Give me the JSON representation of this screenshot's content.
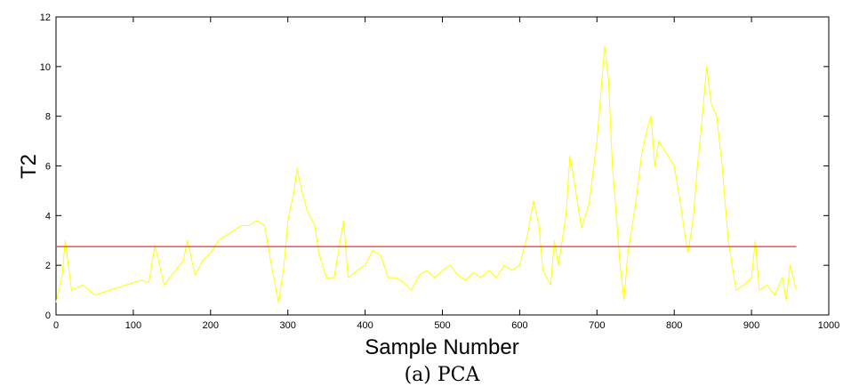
{
  "chart_data": {
    "type": "line",
    "caption": "(a) PCA",
    "xlabel": "Sample Number",
    "ylabel": "T2",
    "xlim": [
      0,
      1000
    ],
    "ylim": [
      0,
      12
    ],
    "xticks": [
      0,
      100,
      200,
      300,
      400,
      500,
      600,
      700,
      800,
      900,
      1000
    ],
    "yticks": [
      0,
      2,
      4,
      6,
      8,
      10,
      12
    ],
    "grid": false,
    "series": [
      {
        "color": "#ffff00",
        "points": [
          [
            0,
            0.5
          ],
          [
            8,
            1.6
          ],
          [
            12,
            3.0
          ],
          [
            20,
            1.0
          ],
          [
            35,
            1.2
          ],
          [
            50,
            0.8
          ],
          [
            70,
            1.0
          ],
          [
            90,
            1.2
          ],
          [
            110,
            1.4
          ],
          [
            120,
            1.3
          ],
          [
            128,
            2.8
          ],
          [
            140,
            1.2
          ],
          [
            150,
            1.6
          ],
          [
            165,
            2.2
          ],
          [
            170,
            3.0
          ],
          [
            180,
            1.6
          ],
          [
            190,
            2.2
          ],
          [
            200,
            2.5
          ],
          [
            210,
            3.0
          ],
          [
            220,
            3.2
          ],
          [
            230,
            3.4
          ],
          [
            240,
            3.6
          ],
          [
            250,
            3.6
          ],
          [
            260,
            3.8
          ],
          [
            270,
            3.6
          ],
          [
            280,
            1.8
          ],
          [
            288,
            0.5
          ],
          [
            295,
            2.0
          ],
          [
            300,
            3.8
          ],
          [
            308,
            5.0
          ],
          [
            312,
            5.9
          ],
          [
            318,
            5.0
          ],
          [
            325,
            4.2
          ],
          [
            335,
            3.6
          ],
          [
            340,
            2.5
          ],
          [
            350,
            1.5
          ],
          [
            360,
            1.5
          ],
          [
            372,
            3.8
          ],
          [
            378,
            1.5
          ],
          [
            390,
            1.8
          ],
          [
            400,
            2.0
          ],
          [
            410,
            2.6
          ],
          [
            420,
            2.4
          ],
          [
            430,
            1.5
          ],
          [
            440,
            1.5
          ],
          [
            450,
            1.3
          ],
          [
            460,
            1.0
          ],
          [
            470,
            1.6
          ],
          [
            480,
            1.8
          ],
          [
            490,
            1.5
          ],
          [
            500,
            1.8
          ],
          [
            510,
            2.0
          ],
          [
            520,
            1.6
          ],
          [
            530,
            1.4
          ],
          [
            540,
            1.7
          ],
          [
            550,
            1.5
          ],
          [
            560,
            1.8
          ],
          [
            570,
            1.5
          ],
          [
            580,
            2.0
          ],
          [
            590,
            1.8
          ],
          [
            600,
            2.0
          ],
          [
            610,
            3.2
          ],
          [
            618,
            4.6
          ],
          [
            625,
            3.6
          ],
          [
            630,
            1.8
          ],
          [
            640,
            1.2
          ],
          [
            645,
            3.0
          ],
          [
            650,
            2.0
          ],
          [
            660,
            4.0
          ],
          [
            665,
            6.4
          ],
          [
            670,
            5.5
          ],
          [
            680,
            3.5
          ],
          [
            690,
            4.5
          ],
          [
            700,
            7.0
          ],
          [
            710,
            10.8
          ],
          [
            715,
            9.5
          ],
          [
            720,
            6.0
          ],
          [
            730,
            2.0
          ],
          [
            735,
            0.6
          ],
          [
            740,
            2.5
          ],
          [
            750,
            4.5
          ],
          [
            758,
            6.5
          ],
          [
            765,
            7.5
          ],
          [
            770,
            8.0
          ],
          [
            775,
            6.0
          ],
          [
            780,
            7.0
          ],
          [
            790,
            6.5
          ],
          [
            800,
            6.0
          ],
          [
            808,
            4.5
          ],
          [
            815,
            3.0
          ],
          [
            818,
            2.5
          ],
          [
            825,
            4.0
          ],
          [
            830,
            6.0
          ],
          [
            835,
            7.5
          ],
          [
            842,
            10.0
          ],
          [
            848,
            8.5
          ],
          [
            855,
            8.0
          ],
          [
            862,
            6.0
          ],
          [
            870,
            3.0
          ],
          [
            880,
            1.0
          ],
          [
            890,
            1.2
          ],
          [
            900,
            1.5
          ],
          [
            905,
            3.0
          ],
          [
            910,
            1.0
          ],
          [
            920,
            1.2
          ],
          [
            930,
            0.8
          ],
          [
            940,
            1.5
          ],
          [
            945,
            0.6
          ],
          [
            950,
            2.0
          ],
          [
            958,
            1.0
          ]
        ]
      },
      {
        "color": "#ee4444",
        "points": [
          [
            0,
            2.75
          ],
          [
            958,
            2.75
          ]
        ]
      }
    ]
  }
}
